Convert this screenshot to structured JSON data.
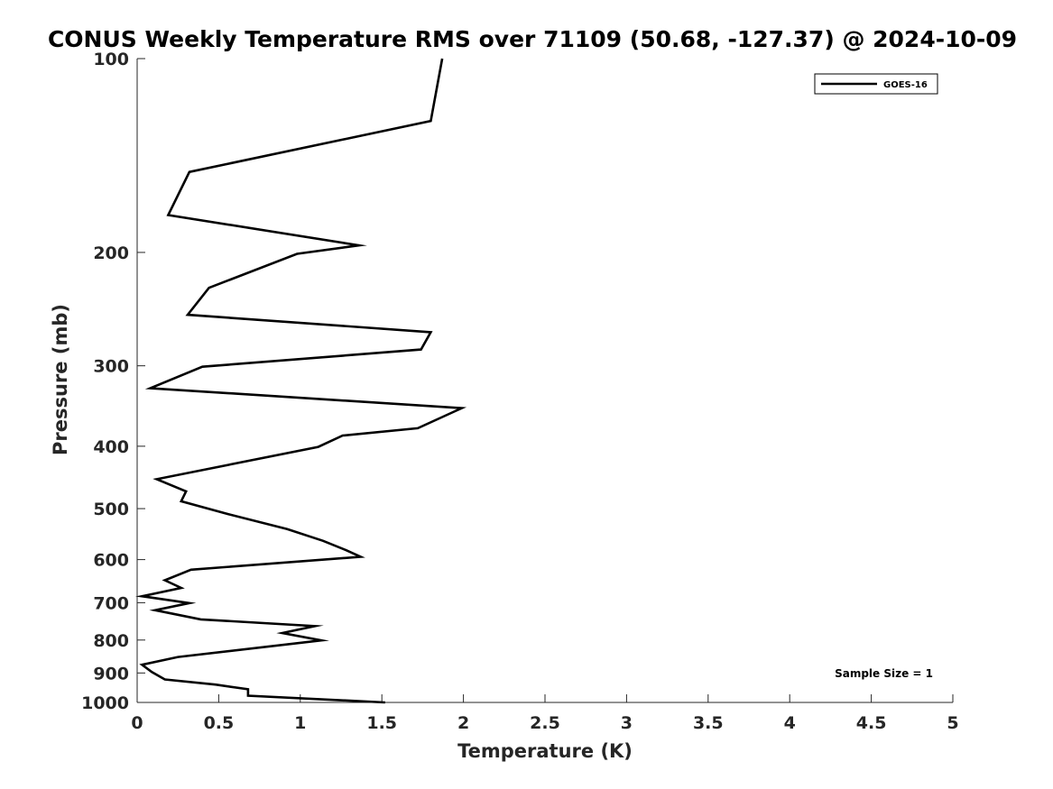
{
  "chart_data": {
    "type": "line",
    "title": "CONUS Weekly Temperature RMS over 71109 (50.68, -127.37) @ 2024-10-09",
    "xlabel": "Temperature (K)",
    "ylabel": "Pressure (mb)",
    "xlim": [
      0,
      5
    ],
    "ylim": [
      100,
      1000
    ],
    "y_scale": "log",
    "y_reversed": true,
    "x_ticks": [
      "0",
      "0.5",
      "1",
      "1.5",
      "2",
      "2.5",
      "3",
      "3.5",
      "4",
      "4.5",
      "5"
    ],
    "x_tick_values": [
      0,
      0.5,
      1,
      1.5,
      2,
      2.5,
      3,
      3.5,
      4,
      4.5,
      5
    ],
    "y_ticks": [
      "100",
      "200",
      "300",
      "400",
      "500",
      "600",
      "700",
      "800",
      "900",
      "1000"
    ],
    "y_tick_values": [
      100,
      200,
      300,
      400,
      500,
      600,
      700,
      800,
      900,
      1000
    ],
    "grid": false,
    "legend_position": "top-right",
    "annotation": "Sample Size = 1",
    "series": [
      {
        "name": "GOES-16",
        "color": "#000000",
        "points": [
          [
            1.87,
            100
          ],
          [
            1.8,
            125
          ],
          [
            0.32,
            150
          ],
          [
            0.19,
            175
          ],
          [
            1.36,
            195
          ],
          [
            0.98,
            201
          ],
          [
            0.44,
            227
          ],
          [
            0.31,
            250
          ],
          [
            1.8,
            266
          ],
          [
            1.74,
            283
          ],
          [
            0.4,
            301
          ],
          [
            0.08,
            325
          ],
          [
            1.99,
            349
          ],
          [
            1.72,
            375
          ],
          [
            1.26,
            385
          ],
          [
            1.11,
            401
          ],
          [
            0.12,
            450
          ],
          [
            0.3,
            470
          ],
          [
            0.27,
            487
          ],
          [
            0.56,
            510
          ],
          [
            0.92,
            538
          ],
          [
            1.14,
            561
          ],
          [
            1.28,
            580
          ],
          [
            1.37,
            594
          ],
          [
            0.33,
            622
          ],
          [
            0.17,
            646
          ],
          [
            0.27,
            664
          ],
          [
            0.03,
            684
          ],
          [
            0.32,
            701
          ],
          [
            0.11,
            719
          ],
          [
            0.39,
            743
          ],
          [
            1.09,
            761
          ],
          [
            0.89,
            780
          ],
          [
            1.13,
            801
          ],
          [
            0.25,
            850
          ],
          [
            0.03,
            874
          ],
          [
            0.09,
            897
          ],
          [
            0.17,
            921
          ],
          [
            0.48,
            938
          ],
          [
            0.68,
            954
          ],
          [
            0.68,
            976
          ],
          [
            1.52,
            1000
          ]
        ]
      }
    ]
  }
}
